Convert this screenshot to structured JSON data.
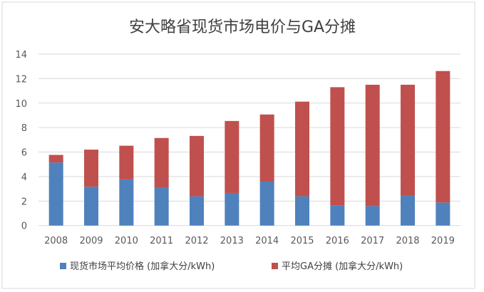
{
  "chart_data": {
    "type": "bar",
    "stacked": true,
    "title": "安大略省现货市场电价与GA分摊",
    "categories": [
      "2008",
      "2009",
      "2010",
      "2011",
      "2012",
      "2013",
      "2014",
      "2015",
      "2016",
      "2017",
      "2018",
      "2019"
    ],
    "series": [
      {
        "name": "现货市场平均价格 (加拿大分/kWh)",
        "color": "#4f81bd",
        "values": [
          5.15,
          3.17,
          3.77,
          3.09,
          2.39,
          2.66,
          3.59,
          2.39,
          1.65,
          1.59,
          2.43,
          1.88
        ]
      },
      {
        "name": "平均GA分摊 (加拿大分/kWh)",
        "color": "#c0504d",
        "values": [
          0.62,
          3.03,
          2.75,
          4.06,
          4.93,
          5.88,
          5.48,
          7.73,
          9.65,
          9.91,
          9.07,
          10.74
        ]
      }
    ],
    "ylim": [
      0,
      14
    ],
    "yticks": [
      "0",
      "2",
      "4",
      "6",
      "8",
      "10",
      "12",
      "14"
    ],
    "grid": true,
    "legend": "bottom"
  }
}
